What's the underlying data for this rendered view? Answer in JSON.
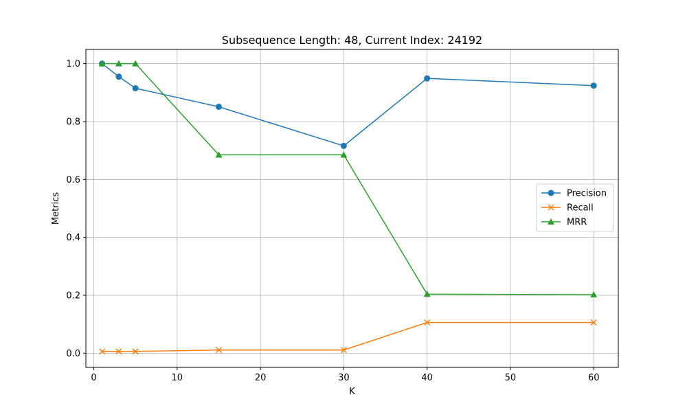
{
  "chart_data": {
    "type": "line",
    "title": "Subsequence Length: 48, Current Index: 24192",
    "xlabel": "K",
    "ylabel": "Metrics",
    "x": [
      1,
      3,
      5,
      15,
      30,
      40,
      60
    ],
    "xlim": [
      -0.95,
      62.95
    ],
    "ylim": [
      -0.049,
      1.049
    ],
    "xticks": [
      0,
      10,
      20,
      30,
      40,
      50,
      60
    ],
    "yticks": [
      0.0,
      0.2,
      0.4,
      0.6,
      0.8,
      1.0
    ],
    "xtick_labels": [
      "0",
      "10",
      "20",
      "30",
      "40",
      "50",
      "60"
    ],
    "ytick_labels": [
      "0.0",
      "0.2",
      "0.4",
      "0.6",
      "0.8",
      "1.0"
    ],
    "grid": true,
    "legend_position": "center-right",
    "series": [
      {
        "name": "Precision",
        "color": "#1f77b4",
        "marker": "circle",
        "values": [
          1.0,
          0.955,
          0.915,
          0.851,
          0.716,
          0.949,
          0.924
        ]
      },
      {
        "name": "Recall",
        "color": "#ff7f0e",
        "marker": "x",
        "values": [
          0.006,
          0.006,
          0.006,
          0.011,
          0.011,
          0.106,
          0.106
        ]
      },
      {
        "name": "MRR",
        "color": "#2ca02c",
        "marker": "triangle",
        "values": [
          1.0,
          1.0,
          1.0,
          0.685,
          0.685,
          0.204,
          0.202
        ]
      }
    ]
  }
}
